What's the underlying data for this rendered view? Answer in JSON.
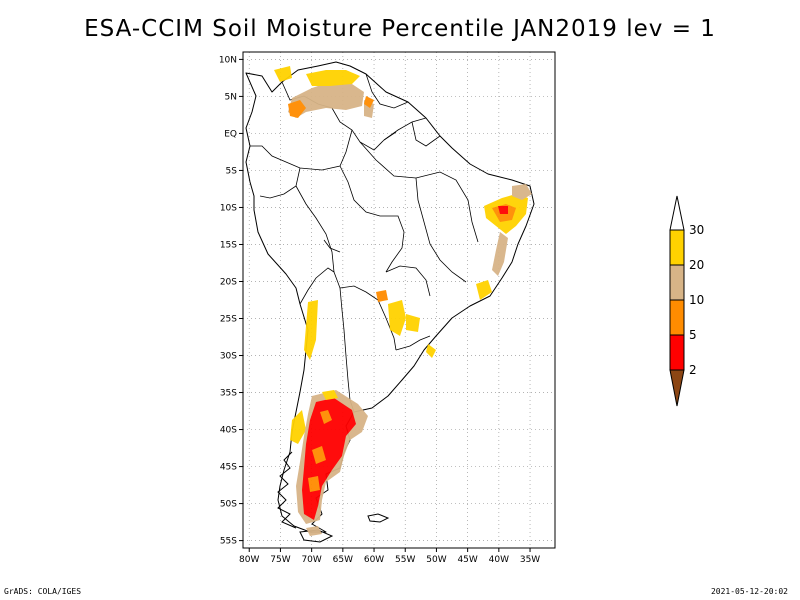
{
  "title": "ESA-CCIM Soil Moisture Percentile JAN2019 lev = 1",
  "footer": {
    "left": "GrADS: COLA/IGES",
    "right": "2021-05-12-20:02"
  },
  "map": {
    "region": "South America",
    "lon_range": [
      -81,
      -31
    ],
    "lat_range": [
      -56,
      11
    ],
    "grid": true,
    "lat_ticks": [
      {
        "value": 10,
        "label": "10N"
      },
      {
        "value": 5,
        "label": "5N"
      },
      {
        "value": 0,
        "label": "EQ"
      },
      {
        "value": -5,
        "label": "5S"
      },
      {
        "value": -10,
        "label": "10S"
      },
      {
        "value": -15,
        "label": "15S"
      },
      {
        "value": -20,
        "label": "20S"
      },
      {
        "value": -25,
        "label": "25S"
      },
      {
        "value": -30,
        "label": "30S"
      },
      {
        "value": -35,
        "label": "35S"
      },
      {
        "value": -40,
        "label": "40S"
      },
      {
        "value": -45,
        "label": "45S"
      },
      {
        "value": -50,
        "label": "50S"
      },
      {
        "value": -55,
        "label": "55S"
      }
    ],
    "lon_ticks": [
      {
        "value": -80,
        "label": "80W"
      },
      {
        "value": -75,
        "label": "75W"
      },
      {
        "value": -70,
        "label": "70W"
      },
      {
        "value": -65,
        "label": "65W"
      },
      {
        "value": -60,
        "label": "60W"
      },
      {
        "value": -55,
        "label": "55W"
      },
      {
        "value": -50,
        "label": "50W"
      },
      {
        "value": -45,
        "label": "45W"
      },
      {
        "value": -40,
        "label": "40W"
      },
      {
        "value": -35,
        "label": "35W"
      }
    ]
  },
  "legend": {
    "bins": [
      {
        "label": "30",
        "color": "#ffffff"
      },
      {
        "label": "20",
        "color": "#ffd200"
      },
      {
        "label": "10",
        "color": "#d7b487"
      },
      {
        "label": "5",
        "color": "#ff8c00"
      },
      {
        "label": "2",
        "color": "#ff0000"
      },
      {
        "label": "",
        "color": "#8c4614"
      }
    ]
  },
  "colors": {
    "p20_30": "#ffd200",
    "p10_20": "#d7b487",
    "p5_10": "#ff8c00",
    "p2_5": "#ff0000",
    "p0_2": "#8c4614"
  }
}
